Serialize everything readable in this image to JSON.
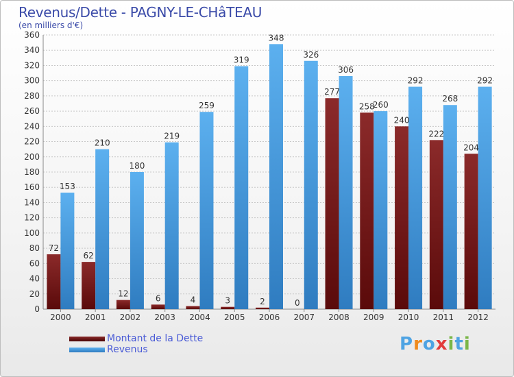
{
  "header": {
    "title": "Revenus/Dette - PAGNY-LE-CHâTEAU",
    "subtitle": "(en milliers d'€)"
  },
  "chart_data": {
    "type": "bar",
    "title": "Revenus/Dette - PAGNY-LE-CHâTEAU",
    "subtitle": "(en milliers d'€)",
    "xlabel": "",
    "ylabel": "",
    "ylim": [
      0,
      360
    ],
    "yticks": [
      0,
      20,
      40,
      60,
      80,
      100,
      120,
      140,
      160,
      180,
      200,
      220,
      240,
      260,
      280,
      300,
      320,
      340,
      360
    ],
    "grid": true,
    "categories": [
      "2000",
      "2001",
      "2002",
      "2003",
      "2004",
      "2005",
      "2006",
      "2007",
      "2008",
      "2009",
      "2010",
      "2011",
      "2012"
    ],
    "series": [
      {
        "name": "Montant de la Dette",
        "color": "#7a1c1c",
        "values": [
          72,
          62,
          12,
          6,
          4,
          3,
          2,
          0,
          277,
          258,
          240,
          222,
          204
        ]
      },
      {
        "name": "Revenus",
        "color": "#4ea3e3",
        "values": [
          153,
          210,
          180,
          219,
          259,
          319,
          348,
          326,
          306,
          260,
          292,
          268,
          292
        ]
      }
    ],
    "legend_position": "bottom-left"
  },
  "legend": {
    "items": [
      {
        "label": "Montant de la Dette",
        "color": "#6b0f0f"
      },
      {
        "label": "Revenus",
        "color": "#4ea3e3"
      }
    ]
  },
  "logo": {
    "text": "Proxiti",
    "letters": [
      "P",
      "r",
      "o",
      "x",
      "i",
      "t",
      "i"
    ],
    "colors": [
      "#4ea3e3",
      "#f08a1c",
      "#4ea3e3",
      "#e23b3b",
      "#7ab648",
      "#4ea3e3",
      "#7ab648"
    ]
  }
}
